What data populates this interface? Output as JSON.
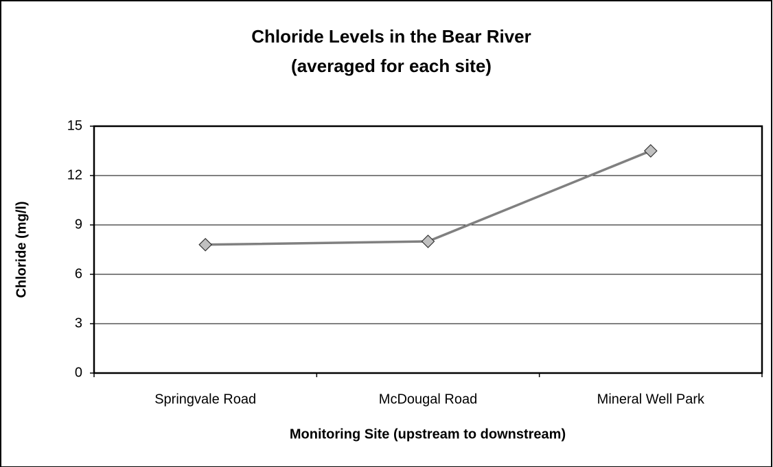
{
  "chart_data": {
    "type": "line",
    "title": "Chloride Levels in the Bear River",
    "subtitle": "(averaged for each site)",
    "x_label": "Monitoring Site (upstream to downstream)",
    "y_label": "Chloride (mg/l)",
    "categories": [
      "Springvale Road",
      "McDougal Road",
      "Mineral Well Park"
    ],
    "series": [
      {
        "name": "Chloride",
        "color": "#808080",
        "marker_color": "#c0c0c0",
        "values": [
          7.8,
          8.0,
          13.5
        ]
      }
    ],
    "ylim": [
      0,
      15
    ],
    "yticks": [
      0,
      3,
      6,
      9,
      12,
      15
    ],
    "grid": true,
    "legend": false
  }
}
